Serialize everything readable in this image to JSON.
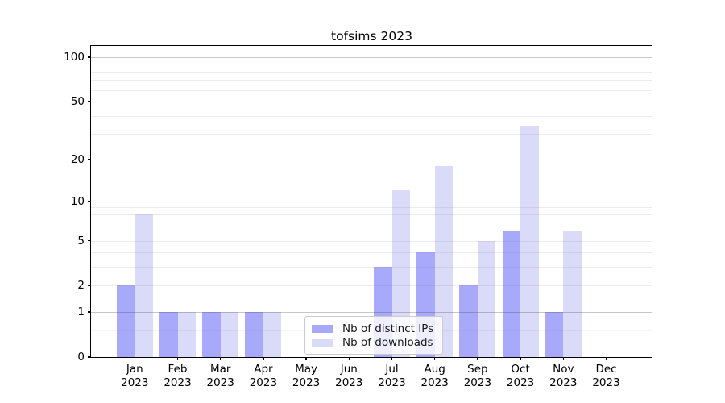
{
  "title": "tofsims 2023",
  "chart_data": {
    "type": "bar",
    "title": "tofsims 2023",
    "categories": [
      "Jan",
      "Feb",
      "Mar",
      "Apr",
      "May",
      "Jun",
      "Jul",
      "Aug",
      "Sep",
      "Oct",
      "Nov",
      "Dec"
    ],
    "category_year": "2023",
    "series": [
      {
        "name": "Nb of distinct IPs",
        "color": "#a9a9fb",
        "values": [
          2,
          1,
          1,
          1,
          0,
          0,
          3,
          4,
          2,
          6,
          1,
          0
        ]
      },
      {
        "name": "Nb of downloads",
        "color": "#dadaf9",
        "values": [
          8,
          1,
          1,
          1,
          0,
          0,
          12,
          18,
          5,
          34,
          6,
          0
        ]
      }
    ],
    "y_scale": "log10(1+x)",
    "y_ticks": [
      0,
      1,
      2,
      5,
      10,
      20,
      50,
      100
    ],
    "y_major_gridlines": [
      1,
      10,
      100
    ],
    "y_minor_gridlines": [
      0.5,
      2,
      3,
      4,
      5,
      6,
      7,
      8,
      9,
      20,
      30,
      40,
      50,
      60,
      70,
      80,
      90
    ],
    "ylim": [
      0,
      118
    ],
    "grid": true,
    "legend_position": "lower center",
    "colors": {
      "distinct_ips": "#a9a9fb",
      "downloads": "#dadaf9",
      "axis": "#000000",
      "background": "#ffffff"
    }
  }
}
